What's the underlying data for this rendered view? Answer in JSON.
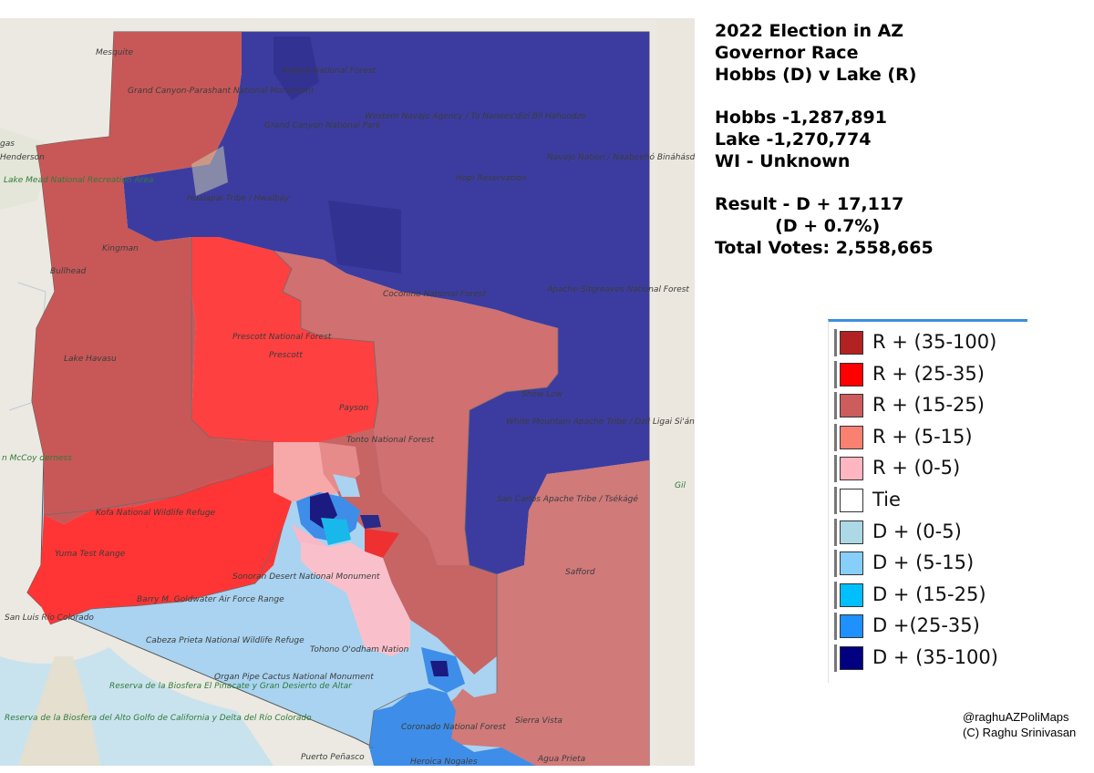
{
  "info": {
    "title_lines": [
      "2022 Election in AZ",
      "Governor Race",
      "Hobbs (D) v Lake (R)"
    ],
    "results_lines": [
      "Hobbs -1,287,891",
      "Lake -1,270,774",
      "WI - Unknown"
    ],
    "summary_lines": [
      "Result - D + 17,117",
      "          (D + 0.7%)",
      "Total Votes: 2,558,665"
    ]
  },
  "legend": {
    "items": [
      {
        "label": "R + (35-100)",
        "color": "#b22222"
      },
      {
        "label": "R + (25-35)",
        "color": "#ff0000"
      },
      {
        "label": "R + (15-25)",
        "color": "#cd5c5c"
      },
      {
        "label": "R + (5-15)",
        "color": "#fa8072"
      },
      {
        "label": "R + (0-5)",
        "color": "#ffb6c1"
      },
      {
        "label": "Tie",
        "color": "#ffffff"
      },
      {
        "label": "D + (0-5)",
        "color": "#add8e6"
      },
      {
        "label": "D + (5-15)",
        "color": "#87cefa"
      },
      {
        "label": "D + (15-25)",
        "color": "#00bfff"
      },
      {
        "label": "D +(25-35)",
        "color": "#1e90ff"
      },
      {
        "label": "D + (35-100)",
        "color": "#000080"
      }
    ]
  },
  "credits": {
    "handle": "@raghuAZPoliMaps",
    "copyright": "(C) Raghu Srinivasan"
  },
  "map_labels": {
    "grand_canyon_parashant": "Grand Canyon-Parashant National Monument",
    "kaibab": "Kaibab National Forest",
    "grand_canyon_np": "Grand Canyon National Park",
    "western_navajo": "Western Navajo Agency / To Nanees'dizi Bił Hahoodzo",
    "navajo_nation": "Navajo Nation / Naabeehó Bináhásdzo",
    "hopi": "Hopi Reservation",
    "hualapai": "Hualapai Tribe / Hwalbáy",
    "lake_mead": "Lake Mead National Recreation Area",
    "prescott_nf": "Prescott National Forest",
    "prescott": "Prescott",
    "coconino": "Coconino National Forest",
    "kingman": "Kingman",
    "bullhead": "Bullhead",
    "lake_havasu": "Lake Havasu",
    "kofa": "Kofa National Wildlife Refuge",
    "yuma_test": "Yuma Test Range",
    "tonto": "Tonto National Forest",
    "white_mountain": "White Mountain Apache Tribe / Dził Ligai Si'án Ndee",
    "san_carlos": "San Carlos Apache Tribe / Tsékágé",
    "apache_sitgreaves": "Apache-Sitgreaves National Forest",
    "show_low": "Show Low",
    "safford": "Safford",
    "barry_goldwater": "Barry M. Goldwater Air Force Range",
    "cabeza_prieta": "Cabeza Prieta National Wildlife Refuge",
    "organ_pipe": "Organ Pipe Cactus National Monument",
    "tohono": "Tohono O'odham Nation",
    "coronado": "Coronado National Forest",
    "sierra_vista": "Sierra Vista",
    "reserva": "Reserva de la Biosfera El Pinacate y Gran Desierto de Altar",
    "reserva2": "Reserva de la Biosfera del Alto Golfo de California y Delta del Río Colorado",
    "puerto_penasco": "Puerto Peñasco",
    "heroica_nogales": "Heroica Nogales",
    "agua_prieta": "Agua Prieta",
    "mesquite": "Mesquite",
    "henderson": "Henderson",
    "las_vegas": "gas",
    "san_luis": "San Luis Río Colorado",
    "gila": "Gil",
    "mccoy": "n McCoy derness",
    "sonoran": "Sonoran Desert National Monument",
    "payson": "Payson"
  }
}
